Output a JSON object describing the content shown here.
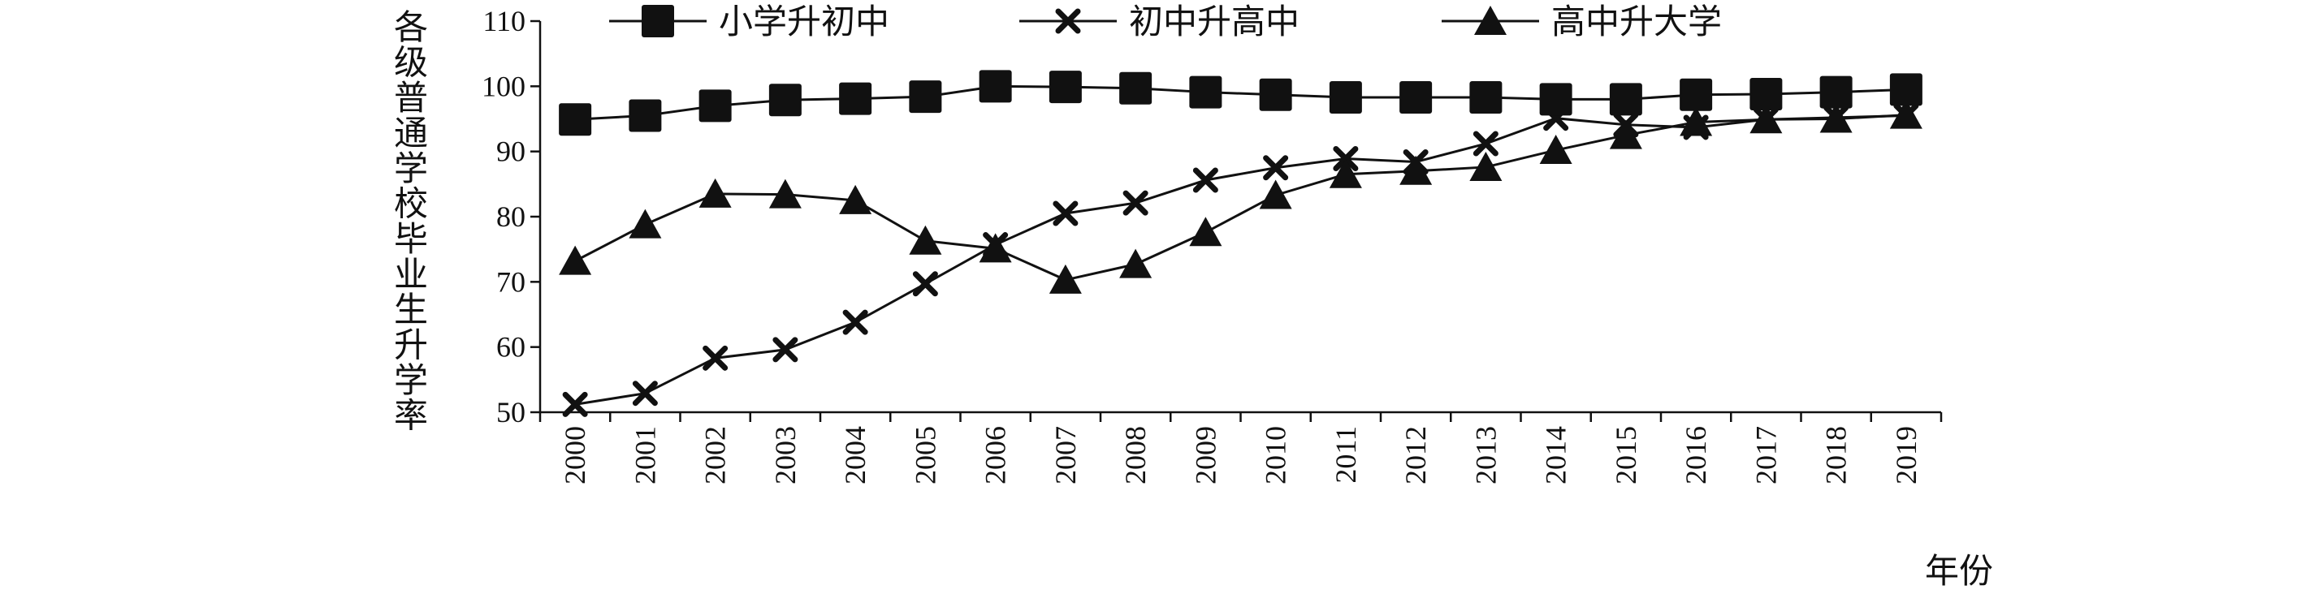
{
  "chart_data": {
    "type": "line",
    "xlabel": "年份",
    "ylabel": "各级普通学校毕业生升学率",
    "ylim": [
      50,
      110
    ],
    "yticks": [
      50,
      60,
      70,
      80,
      90,
      100,
      110
    ],
    "categories": [
      "2000",
      "2001",
      "2002",
      "2003",
      "2004",
      "2005",
      "2006",
      "2007",
      "2008",
      "2009",
      "2010",
      "2011",
      "2012",
      "2013",
      "2014",
      "2015",
      "2016",
      "2017",
      "2018",
      "2019"
    ],
    "legend_position": "top",
    "grid": false,
    "series": [
      {
        "name": "小学升初中",
        "marker": "square",
        "values": [
          94.9,
          95.5,
          97.0,
          97.9,
          98.1,
          98.4,
          100.0,
          99.9,
          99.7,
          99.1,
          98.7,
          98.3,
          98.3,
          98.3,
          98.0,
          98.0,
          98.7,
          98.8,
          99.1,
          99.5
        ]
      },
      {
        "name": "初中升高中",
        "marker": "x",
        "values": [
          51.2,
          52.9,
          58.3,
          59.6,
          63.8,
          69.7,
          75.7,
          80.5,
          82.1,
          85.6,
          87.5,
          88.9,
          88.4,
          91.2,
          95.1,
          94.1,
          93.7,
          94.9,
          95.2,
          95.5
        ]
      },
      {
        "name": "高中升大学",
        "marker": "triangle",
        "values": [
          73.2,
          78.8,
          83.5,
          83.4,
          82.5,
          76.3,
          75.1,
          70.3,
          72.7,
          77.6,
          83.3,
          86.5,
          87.0,
          87.6,
          90.2,
          92.5,
          94.5,
          94.9,
          95.0,
          95.6
        ]
      }
    ]
  }
}
